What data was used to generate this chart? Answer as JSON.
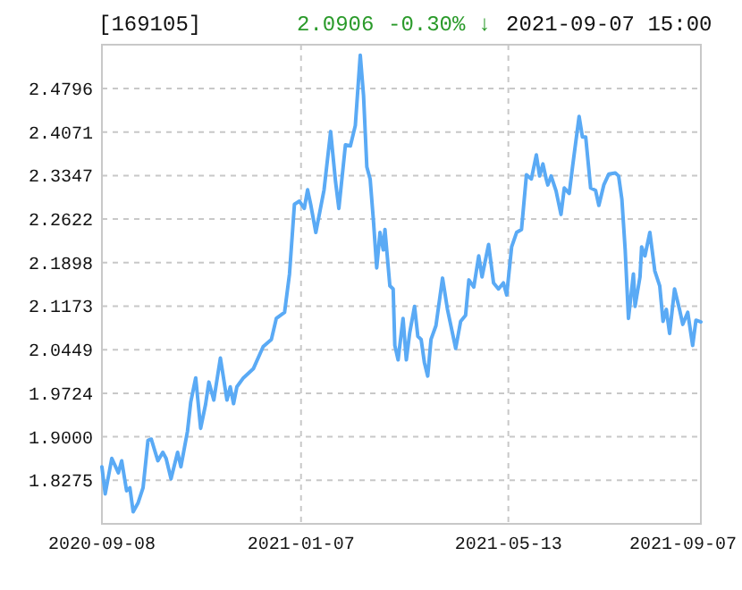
{
  "chart_data": {
    "type": "line",
    "title": "[169105]",
    "annotations": [
      "2.0906",
      "-0.30% ↓",
      "2021-09-07 15:00"
    ],
    "xlim": [
      "2020-09-08",
      "2021-09-07"
    ],
    "xticks": [
      "2020-09-08",
      "2021-01-07",
      "2021-05-13",
      "2021-09-07"
    ],
    "ylim": [
      1.755,
      2.5525
    ],
    "yticks": [
      1.8275,
      {
        "value": 1.9,
        "label": "1.9000"
      },
      1.9724,
      2.0449,
      2.1173,
      2.1898,
      2.2622,
      2.3347,
      2.4071,
      2.4796
    ],
    "grid": true,
    "marker": "none",
    "line_style": "solid",
    "series": [
      {
        "color": "#5aaaf5",
        "x": [
          "2020-09-08",
          "2020-09-10",
          "2020-09-14",
          "2020-09-18",
          "2020-09-20",
          "2020-09-23",
          "2020-09-25",
          "2020-09-27",
          "2020-09-30",
          "2020-10-03",
          "2020-10-06",
          "2020-10-08",
          "2020-10-12",
          "2020-10-15",
          "2020-10-17",
          "2020-10-20",
          "2020-10-24",
          "2020-10-26",
          "2020-10-30",
          "2020-11-01",
          "2020-11-04",
          "2020-11-07",
          "2020-11-10",
          "2020-11-12",
          "2020-11-15",
          "2020-11-19",
          "2020-11-23",
          "2020-11-25",
          "2020-11-27",
          "2020-11-29",
          "2020-12-03",
          "2020-12-09",
          "2020-12-15",
          "2020-12-20",
          "2020-12-23",
          "2020-12-28",
          "2020-12-31",
          "2021-01-03",
          "2021-01-06",
          "2021-01-09",
          "2021-01-11",
          "2021-01-13",
          "2021-01-16",
          "2021-01-21",
          "2021-01-25",
          "2021-01-28",
          "2021-01-30",
          "2021-02-03",
          "2021-02-06",
          "2021-02-09",
          "2021-02-12",
          "2021-02-14",
          "2021-02-16",
          "2021-02-18",
          "2021-02-20",
          "2021-02-22",
          "2021-02-24",
          "2021-02-26",
          "2021-02-27",
          "2021-03-02",
          "2021-03-04",
          "2021-03-05",
          "2021-03-07",
          "2021-03-10",
          "2021-03-12",
          "2021-03-14",
          "2021-03-17",
          "2021-03-19",
          "2021-03-21",
          "2021-03-23",
          "2021-03-25",
          "2021-03-27",
          "2021-03-30",
          "2021-04-03",
          "2021-04-06",
          "2021-04-11",
          "2021-04-14",
          "2021-04-17",
          "2021-04-19",
          "2021-04-22",
          "2021-04-25",
          "2021-04-27",
          "2021-05-01",
          "2021-05-04",
          "2021-05-07",
          "2021-05-10",
          "2021-05-12",
          "2021-05-15",
          "2021-05-18",
          "2021-05-21",
          "2021-05-24",
          "2021-05-27",
          "2021-05-30",
          "2021-06-01",
          "2021-06-03",
          "2021-06-05",
          "2021-06-06",
          "2021-06-08",
          "2021-06-11",
          "2021-06-14",
          "2021-06-16",
          "2021-06-19",
          "2021-06-21",
          "2021-06-25",
          "2021-06-27",
          "2021-06-29",
          "2021-07-02",
          "2021-07-05",
          "2021-07-07",
          "2021-07-10",
          "2021-07-13",
          "2021-07-17",
          "2021-07-19",
          "2021-07-21",
          "2021-07-23",
          "2021-07-25",
          "2021-07-28",
          "2021-07-29",
          "2021-08-01",
          "2021-08-02",
          "2021-08-04",
          "2021-08-07",
          "2021-08-10",
          "2021-08-13",
          "2021-08-15",
          "2021-08-17",
          "2021-08-19",
          "2021-08-22",
          "2021-08-25",
          "2021-08-27",
          "2021-08-30",
          "2021-09-02",
          "2021-09-04",
          "2021-09-07"
        ],
        "values": [
          1.85,
          1.805,
          1.864,
          1.84,
          1.86,
          1.81,
          1.815,
          1.775,
          1.79,
          1.815,
          1.894,
          1.896,
          1.86,
          1.874,
          1.864,
          1.83,
          1.874,
          1.85,
          1.909,
          1.958,
          1.998,
          1.914,
          1.954,
          1.991,
          1.961,
          2.031,
          1.961,
          1.983,
          1.955,
          1.983,
          1.998,
          2.013,
          2.05,
          2.062,
          2.097,
          2.107,
          2.171,
          2.287,
          2.292,
          2.28,
          2.311,
          2.285,
          2.24,
          2.311,
          2.408,
          2.324,
          2.28,
          2.386,
          2.384,
          2.418,
          2.535,
          2.468,
          2.349,
          2.329,
          2.26,
          2.181,
          2.24,
          2.211,
          2.245,
          2.151,
          2.146,
          2.052,
          2.028,
          2.097,
          2.028,
          2.072,
          2.117,
          2.067,
          2.062,
          2.023,
          2.001,
          2.062,
          2.085,
          2.164,
          2.112,
          2.047,
          2.092,
          2.102,
          2.161,
          2.149,
          2.201,
          2.166,
          2.22,
          2.156,
          2.146,
          2.156,
          2.136,
          2.216,
          2.24,
          2.245,
          2.336,
          2.329,
          2.369,
          2.334,
          2.354,
          2.329,
          2.319,
          2.334,
          2.309,
          2.27,
          2.314,
          2.305,
          2.349,
          2.433,
          2.399,
          2.399,
          2.314,
          2.31,
          2.285,
          2.319,
          2.337,
          2.339,
          2.334,
          2.295,
          2.211,
          2.097,
          2.171,
          2.117,
          2.166,
          2.216,
          2.201,
          2.24,
          2.176,
          2.151,
          2.092,
          2.112,
          2.072,
          2.146,
          2.112,
          2.087,
          2.107,
          2.052,
          2.094,
          2.091
        ]
      }
    ]
  }
}
